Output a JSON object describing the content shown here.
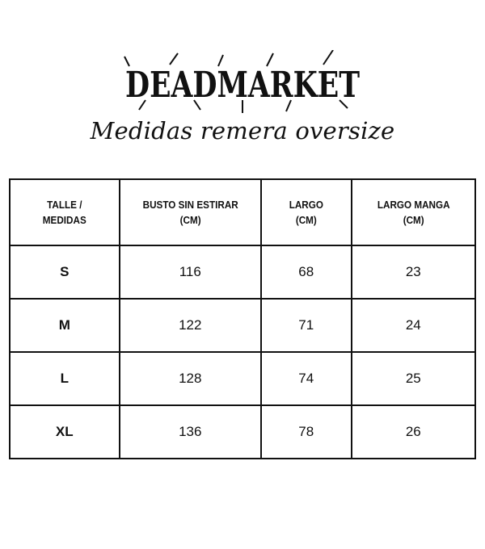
{
  "logo": {
    "text": "DEADMARKET",
    "color": "#111111"
  },
  "subtitle": "Medidas remera oversize",
  "table": {
    "headers": [
      [
        "TALLE /",
        "MEDIDAS"
      ],
      [
        "BUSTO SIN ESTIRAR",
        "(CM)"
      ],
      [
        "LARGO",
        "(CM)"
      ],
      [
        "LARGO MANGA",
        "(CM)"
      ]
    ],
    "rows": [
      [
        "S",
        "116",
        "68",
        "23"
      ],
      [
        "M",
        "122",
        "71",
        "24"
      ],
      [
        "L",
        "128",
        "74",
        "25"
      ],
      [
        "XL",
        "136",
        "78",
        "26"
      ]
    ]
  }
}
